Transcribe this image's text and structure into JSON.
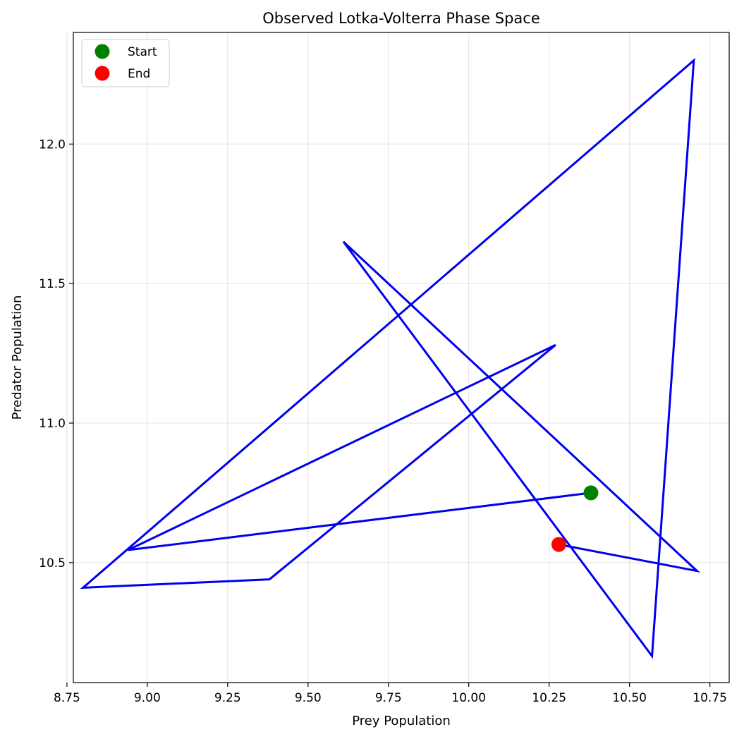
{
  "chart_data": {
    "type": "line",
    "title": "Observed Lotka-Volterra Phase Space",
    "xlabel": "Prey Population",
    "ylabel": "Predator Population",
    "xlim": [
      8.77,
      10.81
    ],
    "ylim": [
      10.07,
      12.4
    ],
    "xticks": [
      8.75,
      9.0,
      9.25,
      9.5,
      9.75,
      10.0,
      10.25,
      10.5,
      10.75
    ],
    "xtick_labels": [
      "8.75",
      "9.00",
      "9.25",
      "9.50",
      "9.75",
      "10.00",
      "10.25",
      "10.50",
      "10.75"
    ],
    "yticks": [
      10.5,
      11.0,
      11.5,
      12.0
    ],
    "ytick_labels": [
      "10.5",
      "11.0",
      "11.5",
      "12.0"
    ],
    "grid": true,
    "legend_position": "top-left",
    "series": [
      {
        "color": "#0000ee",
        "x": [
          10.38,
          8.94,
          10.27,
          9.38,
          8.8,
          10.7,
          10.57,
          9.61,
          10.71,
          10.28
        ],
        "y": [
          10.75,
          10.545,
          11.28,
          10.44,
          10.41,
          12.3,
          10.165,
          11.65,
          10.47,
          10.565
        ]
      }
    ],
    "markers": [
      {
        "label": "Start",
        "x": 10.38,
        "y": 10.75,
        "color": "#008000"
      },
      {
        "label": "End",
        "x": 10.28,
        "y": 10.565,
        "color": "#ff0000"
      }
    ]
  }
}
